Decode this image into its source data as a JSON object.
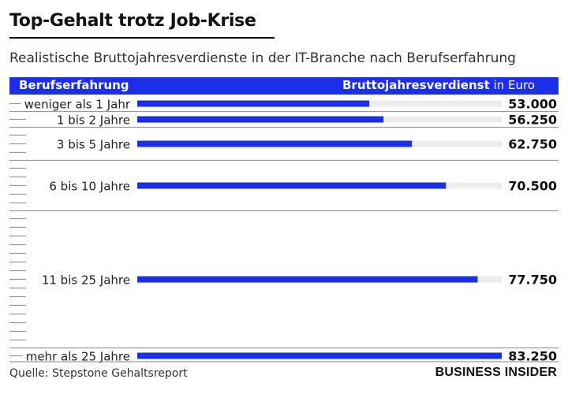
{
  "title": "Top-Gehalt trotz Job-Krise",
  "subtitle": "Realistische Bruttojahresverdienste in der IT-Branche nach Berufserfahrung",
  "header": {
    "left_label": "Berufserfahrung",
    "right_label_bold": "Bruttojahresverdienst",
    "right_label_unit": "in Euro"
  },
  "colors": {
    "bar": "#1a2fe6",
    "track": "#ececec",
    "header_bg": "#1a2fe6"
  },
  "chart_data": {
    "type": "bar",
    "orientation": "horizontal",
    "categories": [
      "weniger als 1 Jahr",
      "1 bis 2 Jahre",
      "3 bis 5 Jahre",
      "6 bis 10 Jahre",
      "11 bis 25 Jahre",
      "mehr als 25 Jahre"
    ],
    "values": [
      53000,
      56250,
      62750,
      70500,
      77750,
      83250
    ],
    "value_labels": [
      "53.000",
      "56.250",
      "62.750",
      "70.500",
      "77.750",
      "83.250"
    ],
    "year_spans": [
      1,
      1,
      3,
      5,
      15,
      1
    ],
    "xlim": [
      0,
      83250
    ],
    "unit": "Euro"
  },
  "footer": {
    "source": "Quelle: Stepstone Gehaltsreport",
    "brand": "BUSINESS INSIDER"
  }
}
